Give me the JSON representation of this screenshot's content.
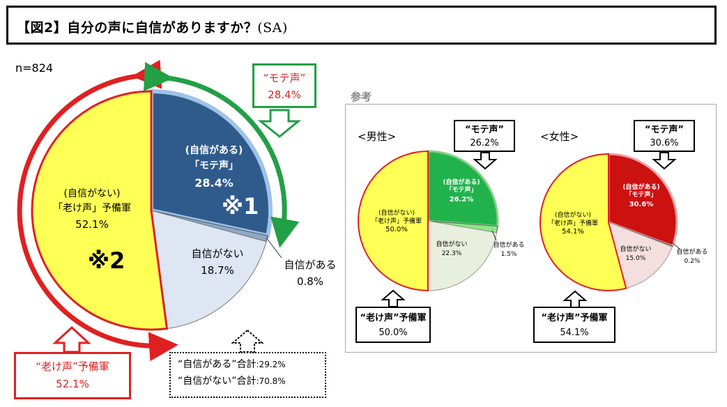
{
  "title": {
    "main": "【図2】自分の声に自信がありますか？",
    "suffix": "(SA)"
  },
  "sample_size": "n=824",
  "reference_label": "参考",
  "main_chart": {
    "segments": [
      {
        "group": "(自信がある)",
        "name": "「モテ声」",
        "value_text": "28.4%",
        "value": 28.4,
        "color": "#2f5b8c"
      },
      {
        "name": "自信がある",
        "value_text": "0.8%",
        "value": 0.8,
        "color": "#8da8c8"
      },
      {
        "name": "自信がない",
        "value_text": "18.7%",
        "value": 18.7,
        "color": "#dde6f2"
      },
      {
        "group": "(自信がない)",
        "name": "「老け声」予備軍",
        "value_text": "52.1%",
        "value": 52.1,
        "color": "#ffff55"
      }
    ],
    "note1": "※1",
    "note2": "※2",
    "callout_mote": {
      "label": "“モテ声”",
      "value": "28.4%"
    },
    "callout_fuke": {
      "label": "“老け声”予備軍",
      "value": "52.1%"
    },
    "totals": {
      "line1_label": "“自信がある”合計",
      "line1_value": ":29.2%",
      "line2_label": "“自信がない”合計",
      "line2_value": ":70.8%"
    }
  },
  "male_chart": {
    "heading": "<男性>",
    "segments": [
      {
        "group": "(自信がある)",
        "name": "「モテ声」",
        "value": 26.2,
        "value_text": "26.2%",
        "color": "#22b24c"
      },
      {
        "name": "自信がある",
        "value": 1.5,
        "value_text": "1.5%",
        "color": "#88e888"
      },
      {
        "name": "自信がない",
        "value": 22.3,
        "value_text": "22.3%",
        "color": "#e8efdc"
      },
      {
        "group": "(自信がない)",
        "name": "「老け声」予備軍",
        "value": 50.0,
        "value_text": "50.0%",
        "color": "#ffff55"
      }
    ],
    "callout_mote": {
      "label": "“モテ声”",
      "value": "26.2%"
    },
    "callout_fuke": {
      "label": "“老け声”予備軍",
      "value": "50.0%"
    }
  },
  "female_chart": {
    "heading": "<女性>",
    "segments": [
      {
        "group": "(自信がある)",
        "name": "「モテ声」",
        "value": 30.6,
        "value_text": "30.6%",
        "color": "#cc1111"
      },
      {
        "name": "自信がある",
        "value": 0.2,
        "value_text": "0.2%",
        "color": "#f0a0a0"
      },
      {
        "name": "自信がない",
        "value": 15.0,
        "value_text": "15.0%",
        "color": "#f5dede"
      },
      {
        "group": "(自信がない)",
        "name": "「老け声」予備軍",
        "value": 54.1,
        "value_text": "54.1%",
        "color": "#ffff55"
      }
    ],
    "callout_mote": {
      "label": "“モテ声”",
      "value": "30.6%"
    },
    "callout_fuke": {
      "label": "“老け声”予備軍",
      "value": "54.1%"
    }
  },
  "chart_data": [
    {
      "type": "pie",
      "categories": [
        "「モテ声」",
        "自信がある",
        "自信がない",
        "「老け声」予備軍"
      ],
      "values": [
        28.4,
        0.8,
        18.7,
        52.1
      ]
    },
    {
      "type": "pie",
      "title": "<男性>",
      "categories": [
        "「モテ声」",
        "自信がある",
        "自信がない",
        "「老け声」予備軍"
      ],
      "values": [
        26.2,
        1.5,
        22.3,
        50.0
      ]
    },
    {
      "type": "pie",
      "title": "<女性>",
      "categories": [
        "「モテ声」",
        "自信がある",
        "自信がない",
        "「老け声」予備軍"
      ],
      "values": [
        30.6,
        0.2,
        15.0,
        54.1
      ]
    }
  ]
}
